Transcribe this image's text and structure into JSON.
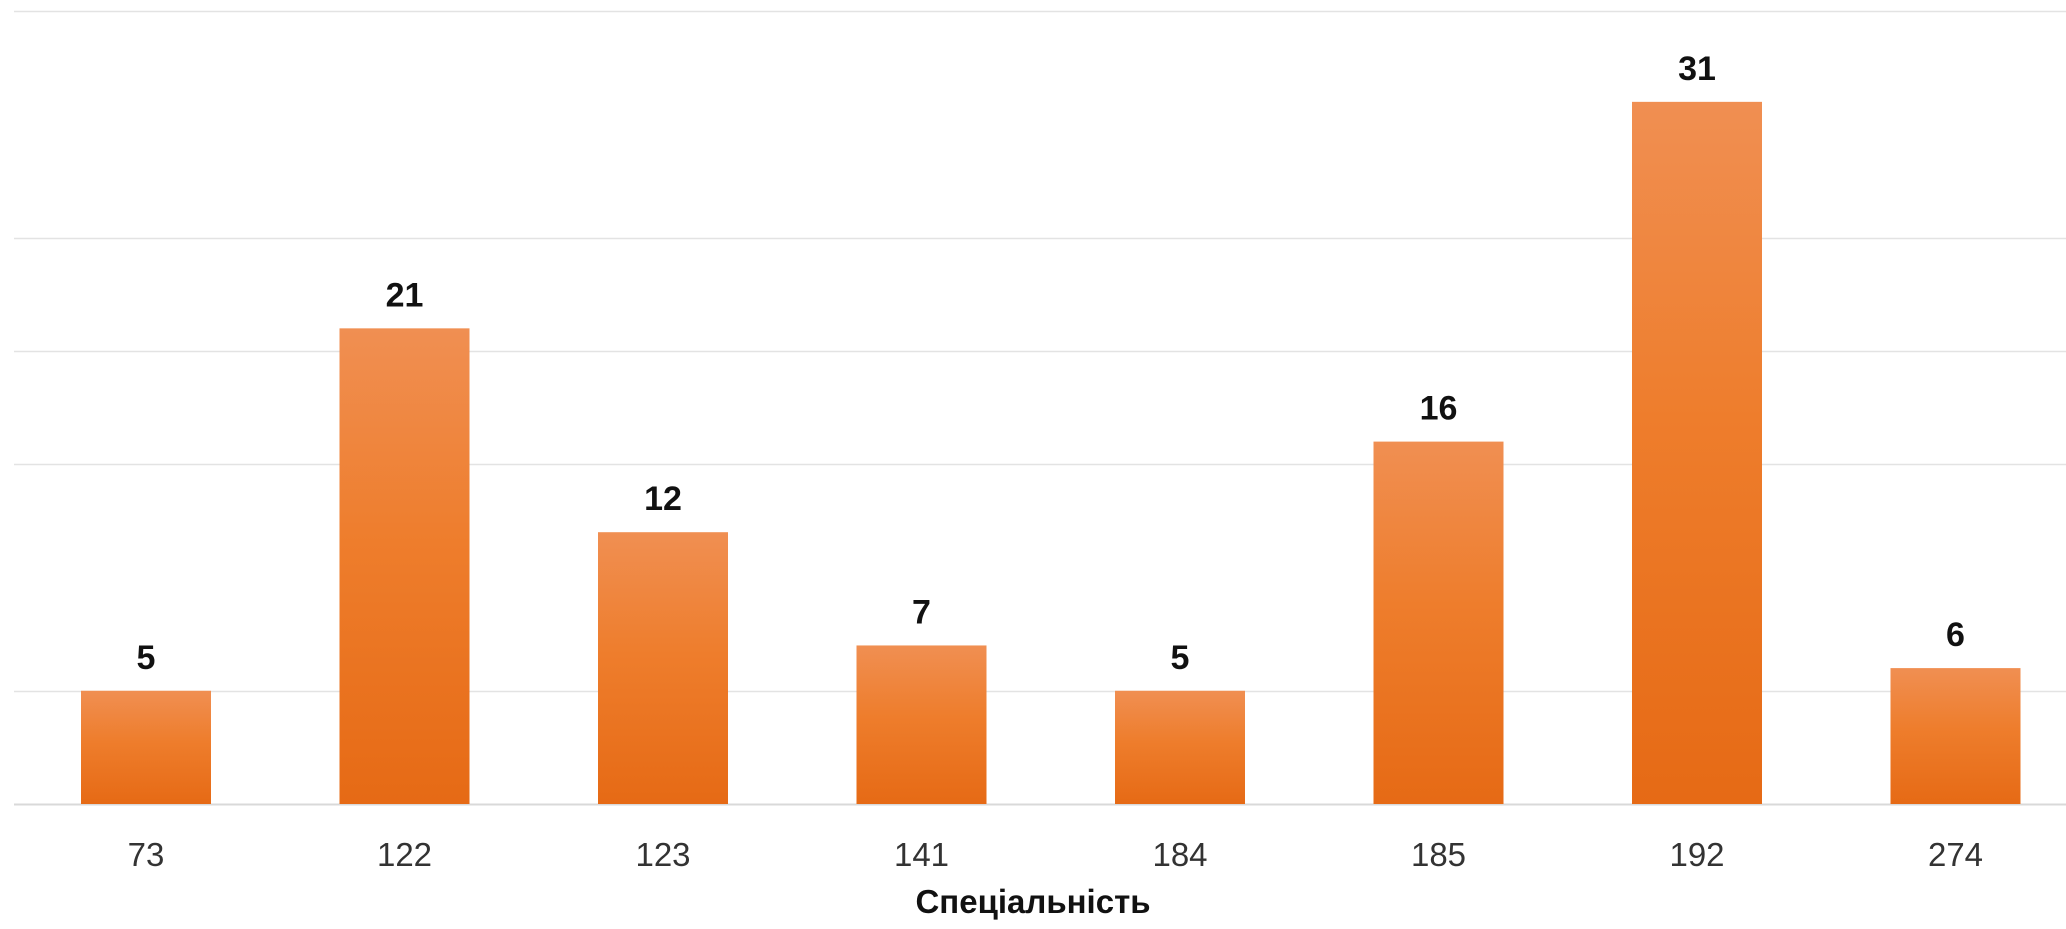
{
  "chart_data": {
    "type": "bar",
    "title": "",
    "xlabel": "Спеціальність",
    "ylabel": "",
    "categories": [
      "73",
      "122",
      "123",
      "141",
      "184",
      "185",
      "192",
      "274"
    ],
    "values": [
      5,
      21,
      12,
      7,
      5,
      16,
      31,
      6
    ],
    "ylim": [
      0,
      35
    ],
    "grid": true,
    "grid_lines": [
      0,
      5,
      15,
      20,
      25,
      35
    ],
    "data_labels": true,
    "legend": "none",
    "colors": {
      "bar_top": "#f08f52",
      "bar_mid": "#ee7d2c",
      "bar_bottom": "#e66a15",
      "grid": "#e3e3e3",
      "axis": "#d9d9d9"
    }
  }
}
